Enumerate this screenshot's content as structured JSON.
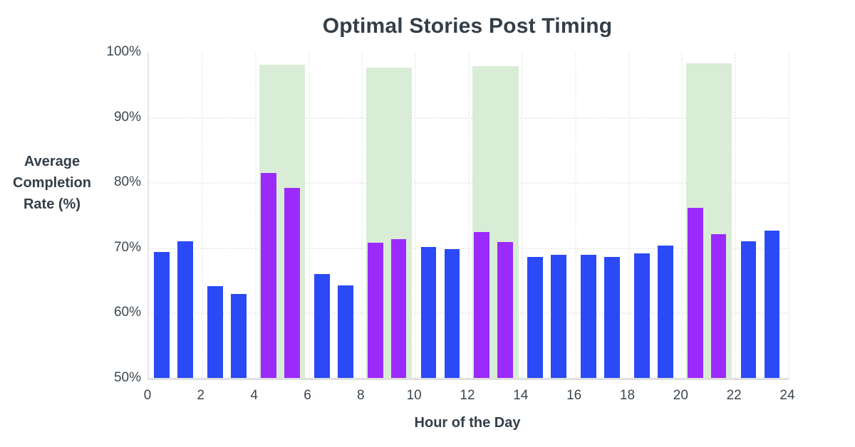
{
  "title": "Optimal Stories Post Timing",
  "chart_data": {
    "type": "bar",
    "title": "Optimal Stories Post Timing",
    "xlabel": "Hour of the Day",
    "ylabel": "Average Completion Rate (%)",
    "ylabel_lines": [
      "Average",
      "Completion",
      "Rate (%)"
    ],
    "x": [
      0,
      1,
      2,
      3,
      4,
      5,
      6,
      7,
      8,
      9,
      10,
      11,
      12,
      13,
      14,
      15,
      16,
      17,
      18,
      19,
      20,
      21,
      22,
      23
    ],
    "values": [
      69.3,
      71.0,
      64.1,
      62.9,
      81.4,
      79.2,
      65.9,
      64.2,
      70.7,
      71.3,
      70.1,
      69.8,
      72.4,
      70.9,
      68.6,
      68.9,
      68.9,
      68.6,
      69.1,
      70.3,
      76.1,
      72.0,
      71.0,
      72.6
    ],
    "highlighted_hours": [
      4,
      5,
      8,
      9,
      12,
      13,
      20,
      21
    ],
    "optimal_windows": [
      {
        "start_hour": 4,
        "end_hour": 6,
        "band_top": 98.0
      },
      {
        "start_hour": 8,
        "end_hour": 10,
        "band_top": 97.6
      },
      {
        "start_hour": 12,
        "end_hour": 14,
        "band_top": 97.8
      },
      {
        "start_hour": 20,
        "end_hour": 22,
        "band_top": 98.3
      }
    ],
    "ylim": [
      50,
      100
    ],
    "xlim": [
      0,
      24
    ],
    "y_ticks": [
      100,
      90,
      80,
      70,
      60,
      50
    ],
    "y_tick_suffix": "%",
    "x_ticks": [
      0,
      2,
      4,
      6,
      8,
      10,
      12,
      14,
      16,
      18,
      20,
      22,
      24
    ],
    "grid": true,
    "legend": "none",
    "colors": {
      "bar": "#2b4af5",
      "highlighted_bar": "#9b2bfa",
      "optimal_band": "#d9edd6",
      "title_text": "#333e48",
      "tick_text": "#3d4650",
      "gridline": "#ebebeb",
      "axis_line": "#e0e0e0",
      "background": "#ffffff"
    }
  }
}
